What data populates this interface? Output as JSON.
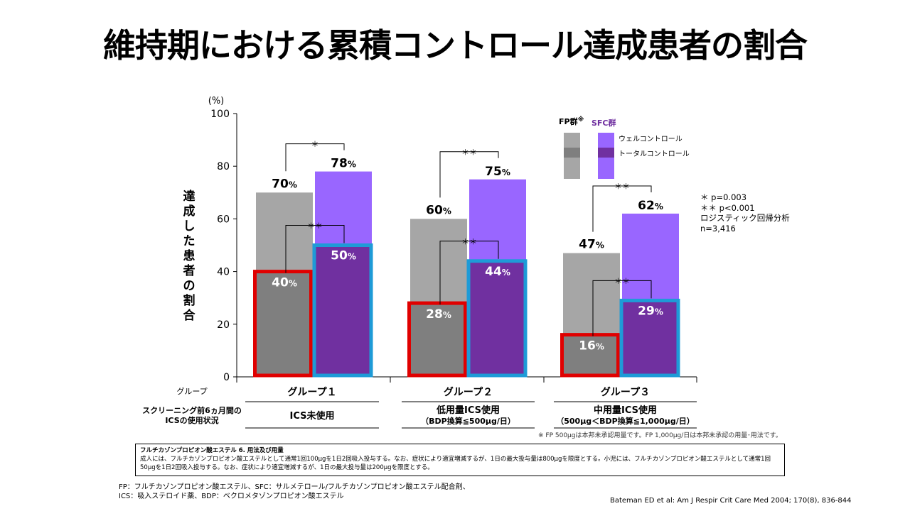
{
  "title": "維持期における累積コントロール達成患者の割合",
  "chart_data": {
    "type": "bar",
    "y_axis": {
      "label": "達成した患者の割合",
      "unit": "(%)",
      "ylim": [
        0,
        100
      ],
      "ticks": [
        0,
        20,
        40,
        60,
        80,
        100
      ]
    },
    "legend": {
      "fp_label": "FP群",
      "fp_mark": "※",
      "sfc_label": "SFC群",
      "well_label": "ウェルコントロール",
      "total_label": "トータルコントロール"
    },
    "groups": [
      {
        "name": "グループ１",
        "ics_status": "ICS未使用",
        "ics_sub": "",
        "fp_well": 70,
        "sfc_well": 78,
        "fp_total": 40,
        "sfc_total": 50,
        "fp_well_label": "70",
        "sfc_well_label": "78",
        "fp_total_label": "40",
        "sfc_total_label": "50",
        "sig_well": "＊",
        "sig_total": "＊＊"
      },
      {
        "name": "グループ２",
        "ics_status": "低用量ICS使用",
        "ics_sub": "（BDP換算≦500μg/日）",
        "fp_well": 60,
        "sfc_well": 75,
        "fp_total": 28,
        "sfc_total": 44,
        "fp_well_label": "60",
        "sfc_well_label": "75",
        "fp_total_label": "28",
        "sfc_total_label": "44",
        "sig_well": "＊＊",
        "sig_total": "＊＊"
      },
      {
        "name": "グループ３",
        "ics_status": "中用量ICS使用",
        "ics_sub": "（500μg＜BDP換算≦1,000μg/日）",
        "fp_well": 47,
        "sfc_well": 62,
        "fp_total": 16,
        "sfc_total": 29,
        "fp_well_label": "47",
        "sfc_well_label": "62",
        "fp_total_label": "16",
        "sfc_total_label": "29",
        "sig_well": "＊＊",
        "sig_total": "＊＊"
      }
    ],
    "percent_sign": "%",
    "row_labels": {
      "group": "グループ",
      "screening": "スクリーニング前6ヵ月間の\nICSの使用状況"
    },
    "colors": {
      "fp_well": "#a6a6a6",
      "fp_total": "#7f7f7f",
      "sfc_well": "#9966ff",
      "sfc_total": "#7030a0",
      "fp_highlight": "#e00000",
      "sfc_highlight": "#1e9bd7",
      "sfc_legend_text": "#7030a0"
    }
  },
  "stats_note": "＊ p=0.003\n＊＊ p<0.001\nロジスティック回帰分析\nn=3,416",
  "footnote_note": "※ FP 500μgは本邦未承認用量です。FP 1,000μg/日は本邦未承認の用量･用法です。",
  "notebox": {
    "title": "フルチカゾンプロピオン酸エステル 6. 用法及び用量",
    "body": "成人には、フルチカゾンプロピオン酸エステルとして通常1回100μgを1日2回吸入投与する。なお、症状により適宜増減するが、1日の最大投与量は800μgを限度とする。小児には、フルチカゾンプロピオン酸エステルとして通常1回50μgを1日2回吸入投与する。なお、症状により適宜増減するが、1日の最大投与量は200μgを限度とする。"
  },
  "abbreviations": "FP：フルチカゾンプロピオン酸エステル、SFC：サルメテロール/フルチカゾンプロピオン酸エステル配合剤、\nICS：吸入ステロイド薬、BDP：ベクロメタゾンプロピオン酸エステル",
  "citation": "Bateman ED et al: Am J Respir Crit Care Med 2004; 170(8), 836-844"
}
